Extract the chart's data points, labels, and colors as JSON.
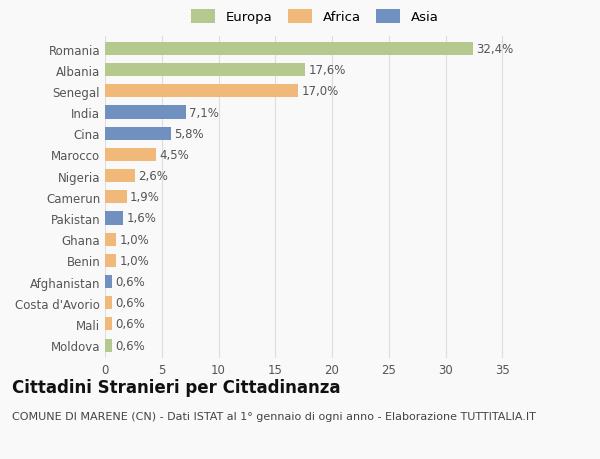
{
  "categories": [
    "Romania",
    "Albania",
    "Senegal",
    "India",
    "Cina",
    "Marocco",
    "Nigeria",
    "Camerun",
    "Pakistan",
    "Ghana",
    "Benin",
    "Afghanistan",
    "Costa d'Avorio",
    "Mali",
    "Moldova"
  ],
  "values": [
    32.4,
    17.6,
    17.0,
    7.1,
    5.8,
    4.5,
    2.6,
    1.9,
    1.6,
    1.0,
    1.0,
    0.6,
    0.6,
    0.6,
    0.6
  ],
  "labels": [
    "32,4%",
    "17,6%",
    "17,0%",
    "7,1%",
    "5,8%",
    "4,5%",
    "2,6%",
    "1,9%",
    "1,6%",
    "1,0%",
    "1,0%",
    "0,6%",
    "0,6%",
    "0,6%",
    "0,6%"
  ],
  "continents": [
    "Europa",
    "Europa",
    "Africa",
    "Asia",
    "Asia",
    "Africa",
    "Africa",
    "Africa",
    "Asia",
    "Africa",
    "Africa",
    "Asia",
    "Africa",
    "Africa",
    "Europa"
  ],
  "colors": {
    "Europa": "#b5c98e",
    "Africa": "#f0b97a",
    "Asia": "#7090c0"
  },
  "legend_labels": [
    "Europa",
    "Africa",
    "Asia"
  ],
  "title": "Cittadini Stranieri per Cittadinanza",
  "subtitle": "COMUNE DI MARENE (CN) - Dati ISTAT al 1° gennaio di ogni anno - Elaborazione TUTTITALIA.IT",
  "xlim": [
    0,
    37
  ],
  "xticks": [
    0,
    5,
    10,
    15,
    20,
    25,
    30,
    35
  ],
  "background_color": "#f9f9f9",
  "grid_color": "#dddddd",
  "title_fontsize": 12,
  "subtitle_fontsize": 8,
  "label_fontsize": 8.5,
  "tick_fontsize": 8.5,
  "legend_fontsize": 9.5
}
